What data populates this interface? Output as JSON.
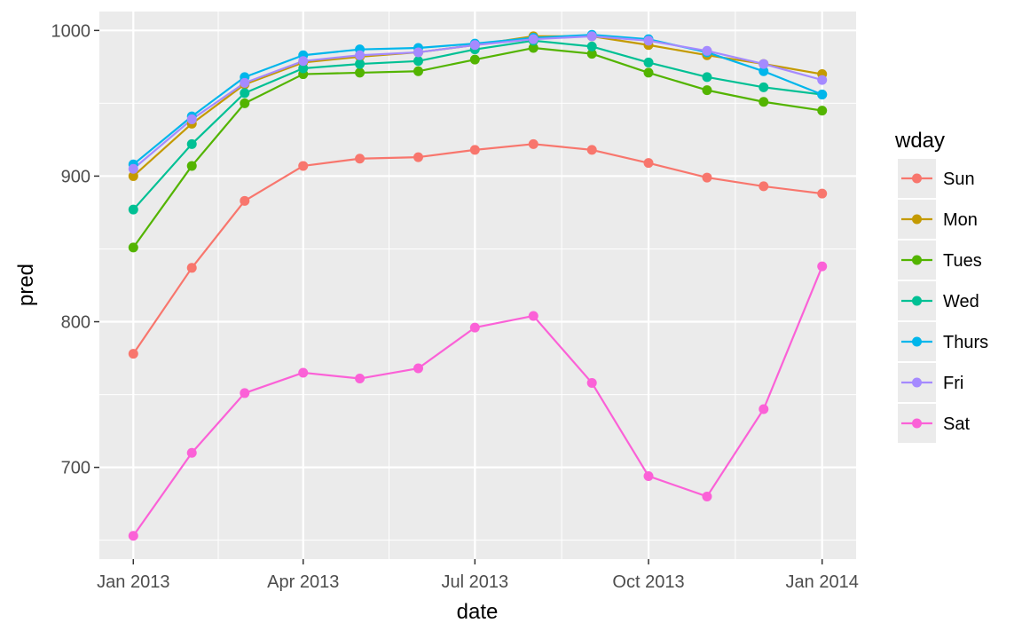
{
  "chart_data": {
    "type": "line",
    "xlabel": "date",
    "ylabel": "pred",
    "x_ticks": [
      "Jan 2013",
      "Apr 2013",
      "Jul 2013",
      "Oct 2013",
      "Jan 2014"
    ],
    "x_tick_dates": [
      "2013-01-01",
      "2013-04-01",
      "2013-07-01",
      "2013-10-01",
      "2014-01-01"
    ],
    "y_ticks": [
      700,
      800,
      900,
      1000
    ],
    "ylim": [
      637,
      1013
    ],
    "xlim": [
      "2012-12-14",
      "2014-01-19"
    ],
    "grid": true,
    "legend": {
      "title": "wday",
      "placement": "right"
    },
    "x": [
      "2013-01-01",
      "2013-02-01",
      "2013-03-01",
      "2013-04-01",
      "2013-05-01",
      "2013-06-01",
      "2013-07-01",
      "2013-08-01",
      "2013-09-01",
      "2013-10-01",
      "2013-11-01",
      "2013-12-01",
      "2014-01-01"
    ],
    "series": [
      {
        "name": "Sun",
        "color": "#F8766D",
        "values": [
          778,
          837,
          883,
          907,
          912,
          913,
          918,
          922,
          918,
          909,
          899,
          893,
          888
        ]
      },
      {
        "name": "Mon",
        "color": "#C49A00",
        "values": [
          900,
          936,
          963,
          978,
          982,
          985,
          990,
          996,
          996,
          990,
          983,
          977,
          970
        ]
      },
      {
        "name": "Tues",
        "color": "#53B400",
        "values": [
          851,
          907,
          950,
          970,
          971,
          972,
          980,
          988,
          984,
          971,
          959,
          951,
          945
        ]
      },
      {
        "name": "Wed",
        "color": "#00C094",
        "values": [
          877,
          922,
          957,
          974,
          977,
          979,
          987,
          993,
          989,
          978,
          968,
          961,
          956
        ]
      },
      {
        "name": "Thurs",
        "color": "#00B6EB",
        "values": [
          908,
          941,
          968,
          983,
          987,
          988,
          991,
          995,
          997,
          994,
          985,
          972,
          956
        ]
      },
      {
        "name": "Fri",
        "color": "#A58AFF",
        "values": [
          905,
          939,
          964,
          979,
          983,
          985,
          990,
          994,
          996,
          993,
          986,
          977,
          966
        ]
      },
      {
        "name": "Sat",
        "color": "#FB61D7",
        "values": [
          653,
          710,
          751,
          765,
          761,
          768,
          796,
          804,
          758,
          694,
          680,
          740,
          838
        ]
      }
    ]
  }
}
